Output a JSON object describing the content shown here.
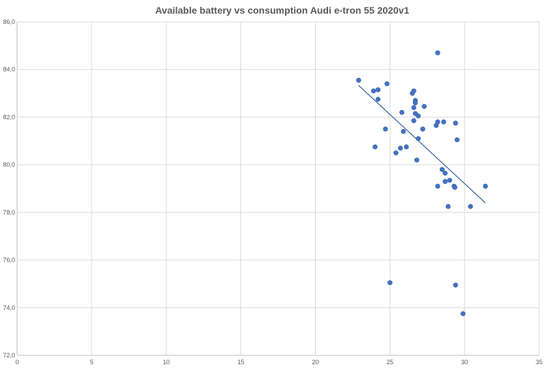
{
  "chart_data": {
    "type": "scatter",
    "title": "Available battery vs consumption Audi e-tron 55 2020v1",
    "xlabel": "",
    "ylabel": "",
    "xlim": [
      0,
      35
    ],
    "ylim": [
      72,
      86
    ],
    "x_ticks": [
      "0",
      "5",
      "10",
      "15",
      "20",
      "25",
      "30",
      "35"
    ],
    "y_ticks": [
      "72,0",
      "74,0",
      "76,0",
      "78,0",
      "80,0",
      "82,0",
      "84,0",
      "86,0"
    ],
    "grid": true,
    "legend": "none",
    "marker_color": "#4472c4",
    "trendline_color": "#2e5c9e",
    "trendline": {
      "type": "linear",
      "x": [
        22.9,
        31.4
      ],
      "y": [
        83.33,
        78.4
      ]
    },
    "points": [
      {
        "x": 22.9,
        "y": 83.55
      },
      {
        "x": 23.9,
        "y": 83.1
      },
      {
        "x": 24.2,
        "y": 83.15
      },
      {
        "x": 24.2,
        "y": 82.75
      },
      {
        "x": 24.8,
        "y": 83.4
      },
      {
        "x": 24.0,
        "y": 80.75
      },
      {
        "x": 24.7,
        "y": 81.5
      },
      {
        "x": 25.0,
        "y": 75.05
      },
      {
        "x": 25.4,
        "y": 80.5
      },
      {
        "x": 25.7,
        "y": 80.7
      },
      {
        "x": 25.8,
        "y": 82.2
      },
      {
        "x": 25.9,
        "y": 81.4
      },
      {
        "x": 26.1,
        "y": 80.75
      },
      {
        "x": 26.5,
        "y": 83.0
      },
      {
        "x": 26.6,
        "y": 83.1
      },
      {
        "x": 26.7,
        "y": 82.7
      },
      {
        "x": 26.7,
        "y": 82.6
      },
      {
        "x": 26.6,
        "y": 82.4
      },
      {
        "x": 26.7,
        "y": 82.15
      },
      {
        "x": 26.9,
        "y": 82.05
      },
      {
        "x": 26.6,
        "y": 81.85
      },
      {
        "x": 26.9,
        "y": 81.1
      },
      {
        "x": 26.8,
        "y": 80.2
      },
      {
        "x": 27.2,
        "y": 81.5
      },
      {
        "x": 27.3,
        "y": 82.45
      },
      {
        "x": 28.1,
        "y": 81.65
      },
      {
        "x": 28.2,
        "y": 81.8
      },
      {
        "x": 28.6,
        "y": 81.8
      },
      {
        "x": 28.2,
        "y": 84.7
      },
      {
        "x": 28.5,
        "y": 79.8
      },
      {
        "x": 28.7,
        "y": 79.65
      },
      {
        "x": 28.2,
        "y": 79.1
      },
      {
        "x": 28.7,
        "y": 79.3
      },
      {
        "x": 29.0,
        "y": 79.35
      },
      {
        "x": 29.3,
        "y": 79.1
      },
      {
        "x": 29.35,
        "y": 79.05
      },
      {
        "x": 28.9,
        "y": 78.25
      },
      {
        "x": 29.4,
        "y": 81.75
      },
      {
        "x": 29.5,
        "y": 81.05
      },
      {
        "x": 29.4,
        "y": 74.95
      },
      {
        "x": 29.9,
        "y": 73.75
      },
      {
        "x": 30.4,
        "y": 78.25
      },
      {
        "x": 31.4,
        "y": 79.1
      }
    ]
  }
}
